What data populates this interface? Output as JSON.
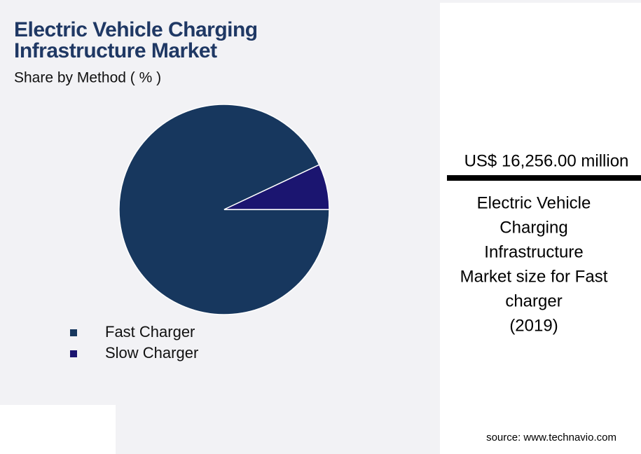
{
  "chart_data": {
    "type": "pie",
    "title": "Electric Vehicle Charging Infrastructure Market",
    "subtitle": "Share by Method ( % )",
    "categories": [
      "Fast Charger",
      "Slow Charger"
    ],
    "values": [
      93,
      7
    ],
    "colors": [
      "#17375e",
      "#1b1570"
    ]
  },
  "panel": {
    "value": "US$ 16,256.00 million",
    "caption": [
      "Electric Vehicle",
      "Charging",
      "Infrastructure",
      "Market size for Fast",
      "charger",
      "(2019)"
    ]
  },
  "source": "source: www.technavio.com"
}
